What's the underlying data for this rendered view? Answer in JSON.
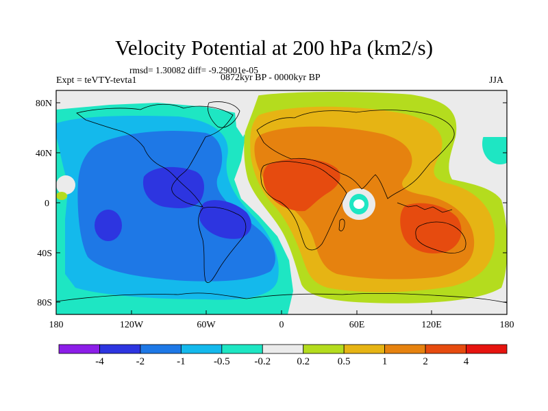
{
  "title": "Velocity Potential at 200 hPa (km2/s)",
  "stats": "rmsd= 1.30082 diff= -9.29001e-05",
  "experiment": "Expt = teVTY-tevta1",
  "period": "0872kyr BP - 0000kyr BP",
  "season": "JJA",
  "lat_ticks": [
    "80N",
    "40N",
    "0",
    "40S",
    "80S"
  ],
  "lon_ticks": [
    "180",
    "120W",
    "60W",
    "0",
    "60E",
    "120E",
    "180"
  ],
  "colorbar": {
    "labels": [
      "-4",
      "-2",
      "-1",
      "-0.5",
      "-0.2",
      "0.2",
      "0.5",
      "1",
      "2",
      "4"
    ],
    "colors": [
      "#8c1ee8",
      "#2d35e0",
      "#1e78e6",
      "#14b9ec",
      "#1ee6c3",
      "#ebebeb",
      "#b4dc1e",
      "#e6b414",
      "#e6820f",
      "#e64b0f",
      "#e6140f"
    ]
  },
  "palette": {
    "land": "#000000",
    "frame": "#000000"
  }
}
